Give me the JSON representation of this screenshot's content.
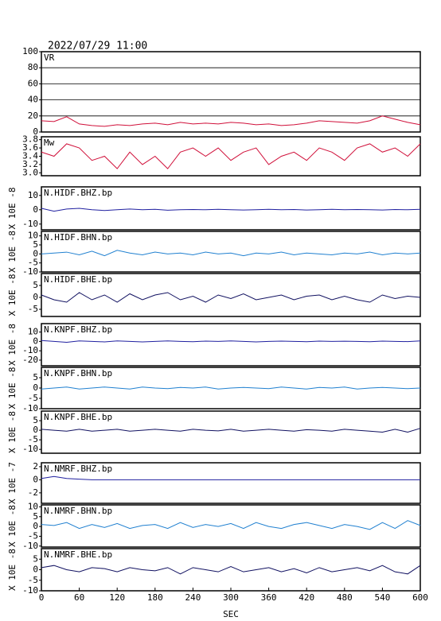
{
  "header": {
    "title": "2022/07/29 11:00"
  },
  "chart_data": [
    {
      "type": "line",
      "grid": true,
      "xlim": [
        0,
        600
      ],
      "ylim": [
        0,
        100
      ],
      "yticks": [
        0,
        20,
        40,
        60,
        80,
        100
      ],
      "x": [
        0,
        20,
        40,
        60,
        80,
        100,
        120,
        140,
        160,
        180,
        200,
        220,
        240,
        260,
        280,
        300,
        320,
        340,
        360,
        380,
        400,
        420,
        440,
        460,
        480,
        500,
        520,
        540,
        560,
        580,
        600
      ],
      "series": [
        {
          "name": "VR",
          "color": "#d0103a",
          "values": [
            14,
            13,
            19,
            10,
            8,
            7,
            9,
            8,
            10,
            11,
            9,
            12,
            10,
            11,
            10,
            12,
            11,
            9,
            10,
            8,
            9,
            11,
            14,
            13,
            12,
            11,
            14,
            20,
            16,
            12,
            9
          ]
        }
      ]
    },
    {
      "type": "line",
      "grid": false,
      "xlim": [
        0,
        600
      ],
      "ylim": [
        2.93,
        3.87
      ],
      "yticks": [
        {
          "value": 3,
          "label": "3.0"
        },
        3.2,
        3.4,
        3.6,
        3.8
      ],
      "x": [
        0,
        20,
        40,
        60,
        80,
        100,
        120,
        140,
        160,
        180,
        200,
        220,
        240,
        260,
        280,
        300,
        320,
        340,
        360,
        380,
        400,
        420,
        440,
        460,
        480,
        500,
        520,
        540,
        560,
        580,
        600
      ],
      "series": [
        {
          "name": "Mw",
          "color": "#d0103a",
          "values": [
            3.5,
            3.4,
            3.7,
            3.6,
            3.3,
            3.4,
            3.1,
            3.5,
            3.2,
            3.4,
            3.1,
            3.5,
            3.6,
            3.4,
            3.6,
            3.3,
            3.5,
            3.6,
            3.2,
            3.4,
            3.5,
            3.3,
            3.6,
            3.5,
            3.3,
            3.6,
            3.7,
            3.5,
            3.6,
            3.4,
            3.7
          ]
        }
      ]
    },
    {
      "type": "line",
      "grid": false,
      "ylabel": "X 10E -8",
      "xlim": [
        0,
        600
      ],
      "ylim": [
        -14,
        16
      ],
      "yticks": [
        -10,
        0,
        10
      ],
      "x": [
        0,
        20,
        40,
        60,
        80,
        100,
        120,
        140,
        160,
        180,
        200,
        220,
        240,
        260,
        280,
        300,
        320,
        340,
        360,
        380,
        400,
        420,
        440,
        460,
        480,
        500,
        520,
        540,
        560,
        580,
        600
      ],
      "series": [
        {
          "name": "N.HIDF.BHZ.bp",
          "color": "#2020a0",
          "values": [
            1,
            -1,
            0.5,
            1,
            0,
            -0.5,
            0,
            0.5,
            0,
            0.3,
            -0.3,
            0,
            0.2,
            0,
            0.3,
            0,
            -0.2,
            0,
            0.3,
            0,
            0.2,
            -0.2,
            0,
            0.3,
            0,
            0.2,
            0,
            -0.2,
            0.2,
            0,
            0.3
          ]
        }
      ]
    },
    {
      "type": "line",
      "grid": false,
      "ylabel": "X 10E -8",
      "xlim": [
        0,
        600
      ],
      "ylim": [
        -10,
        12.5
      ],
      "yticks": [
        -10,
        -5,
        0,
        5,
        10
      ],
      "x": [
        0,
        20,
        40,
        60,
        80,
        100,
        120,
        140,
        160,
        180,
        200,
        220,
        240,
        260,
        280,
        300,
        320,
        340,
        360,
        380,
        400,
        420,
        440,
        460,
        480,
        500,
        520,
        540,
        560,
        580,
        600
      ],
      "series": [
        {
          "name": "N.HIDF.BHN.bp",
          "color": "#2080d0",
          "values": [
            0,
            0.5,
            1,
            -0.5,
            1.5,
            -1,
            2,
            0.5,
            -0.5,
            1,
            0,
            0.5,
            -0.5,
            1,
            0,
            0.5,
            -1,
            0.5,
            0,
            1,
            -0.5,
            0.5,
            0,
            -0.5,
            0.5,
            0,
            1,
            -0.5,
            0.5,
            0,
            0.5
          ]
        }
      ]
    },
    {
      "type": "line",
      "grid": false,
      "ylabel": "X 10E -8",
      "xlim": [
        0,
        600
      ],
      "ylim": [
        -8,
        10
      ],
      "yticks": [
        -5,
        0,
        5
      ],
      "x": [
        0,
        20,
        40,
        60,
        80,
        100,
        120,
        140,
        160,
        180,
        200,
        220,
        240,
        260,
        280,
        300,
        320,
        340,
        360,
        380,
        400,
        420,
        440,
        460,
        480,
        500,
        520,
        540,
        560,
        580,
        600
      ],
      "series": [
        {
          "name": "N.HIDF.BHE.bp",
          "color": "#101060",
          "values": [
            1,
            -1,
            -2,
            2,
            -1,
            1,
            -2,
            1.5,
            -1,
            1,
            2,
            -1,
            0.5,
            -2,
            1,
            -0.5,
            1.5,
            -1,
            0,
            1,
            -1,
            0.5,
            1,
            -1,
            0.5,
            -1,
            -2,
            1,
            -0.5,
            0.5,
            0
          ]
        }
      ]
    },
    {
      "type": "line",
      "grid": false,
      "ylabel": "X 10E -8",
      "xlim": [
        0,
        600
      ],
      "ylim": [
        -26,
        19
      ],
      "yticks": [
        -20,
        -10,
        0,
        10
      ],
      "x": [
        0,
        20,
        40,
        60,
        80,
        100,
        120,
        140,
        160,
        180,
        200,
        220,
        240,
        260,
        280,
        300,
        320,
        340,
        360,
        380,
        400,
        420,
        440,
        460,
        480,
        500,
        520,
        540,
        560,
        580,
        600
      ],
      "series": [
        {
          "name": "N.KNPF.BHZ.bp",
          "color": "#2020a0",
          "values": [
            1,
            0,
            -1,
            0.5,
            0,
            -0.5,
            0.5,
            0,
            -0.5,
            0,
            0.5,
            0,
            -0.3,
            0.3,
            0,
            0.5,
            0,
            -0.5,
            0,
            0.3,
            0,
            -0.3,
            0.3,
            0,
            0.2,
            0,
            -0.3,
            0.3,
            0,
            -0.2,
            0.5
          ]
        }
      ]
    },
    {
      "type": "line",
      "grid": false,
      "ylabel": "X 10E -8",
      "xlim": [
        0,
        600
      ],
      "ylim": [
        -10,
        10
      ],
      "yticks": [
        -10,
        -5,
        0,
        5
      ],
      "x": [
        0,
        20,
        40,
        60,
        80,
        100,
        120,
        140,
        160,
        180,
        200,
        220,
        240,
        260,
        280,
        300,
        320,
        340,
        360,
        380,
        400,
        420,
        440,
        460,
        480,
        500,
        520,
        540,
        560,
        580,
        600
      ],
      "series": [
        {
          "name": "N.KNPF.BHN.bp",
          "color": "#2080d0",
          "values": [
            -0.5,
            0,
            0.5,
            -0.5,
            0,
            0.5,
            0,
            -0.5,
            0.5,
            0,
            -0.3,
            0.3,
            0,
            0.5,
            -0.5,
            0,
            0.3,
            0,
            -0.3,
            0.5,
            0,
            -0.5,
            0.3,
            0,
            0.5,
            -0.5,
            0,
            0.3,
            0,
            -0.3,
            0
          ]
        }
      ]
    },
    {
      "type": "line",
      "grid": false,
      "ylabel": "X 10E -8",
      "xlim": [
        0,
        600
      ],
      "ylim": [
        -12,
        10
      ],
      "yticks": [
        -10,
        -5,
        0,
        5
      ],
      "x": [
        0,
        20,
        40,
        60,
        80,
        100,
        120,
        140,
        160,
        180,
        200,
        220,
        240,
        260,
        280,
        300,
        320,
        340,
        360,
        380,
        400,
        420,
        440,
        460,
        480,
        500,
        520,
        540,
        560,
        580,
        600
      ],
      "series": [
        {
          "name": "N.KNPF.BHE.bp",
          "color": "#101060",
          "values": [
            0.5,
            0,
            -0.5,
            0.5,
            -0.5,
            0,
            0.5,
            -0.5,
            0,
            0.5,
            0,
            -0.5,
            0.5,
            0,
            -0.3,
            0.5,
            -0.5,
            0,
            0.5,
            0,
            -0.5,
            0.3,
            0,
            -0.5,
            0.5,
            0,
            -0.5,
            -1,
            0.5,
            -1,
            1
          ]
        }
      ]
    },
    {
      "type": "line",
      "grid": false,
      "ylabel": "X 10E -7",
      "xlim": [
        0,
        600
      ],
      "ylim": [
        -3.6,
        2.6
      ],
      "yticks": [
        -2,
        0,
        2
      ],
      "x": [
        0,
        20,
        40,
        60,
        80,
        100,
        120,
        140,
        160,
        180,
        200,
        220,
        240,
        260,
        280,
        300,
        320,
        340,
        360,
        380,
        400,
        420,
        440,
        460,
        480,
        500,
        520,
        540,
        560,
        580,
        600
      ],
      "series": [
        {
          "name": "N.NMRF.BHZ.bp",
          "color": "#2020a0",
          "values": [
            0.2,
            0.5,
            0.2,
            0.1,
            0,
            0,
            0,
            0,
            0,
            0,
            0,
            0,
            0,
            0,
            0,
            0,
            0,
            0,
            0,
            0,
            0,
            0,
            0,
            0,
            0,
            0,
            0,
            0,
            0,
            0,
            0
          ]
        }
      ]
    },
    {
      "type": "line",
      "grid": false,
      "ylabel": "X 10E -8",
      "xlim": [
        0,
        600
      ],
      "ylim": [
        -10.5,
        11
      ],
      "yticks": [
        -10,
        -5,
        0,
        5,
        10
      ],
      "x": [
        0,
        20,
        40,
        60,
        80,
        100,
        120,
        140,
        160,
        180,
        200,
        220,
        240,
        260,
        280,
        300,
        320,
        340,
        360,
        380,
        400,
        420,
        440,
        460,
        480,
        500,
        520,
        540,
        560,
        580,
        600
      ],
      "series": [
        {
          "name": "N.NMRF.BHN.bp",
          "color": "#2080d0",
          "values": [
            1,
            0.5,
            2,
            -1,
            1,
            -0.5,
            1.5,
            -1,
            0.5,
            1,
            -1,
            2,
            -0.5,
            1,
            0,
            1.5,
            -1,
            2,
            0,
            -1,
            1,
            2,
            0.5,
            -1,
            1,
            0,
            -1.5,
            2,
            -1,
            3,
            0.5
          ]
        }
      ]
    },
    {
      "type": "line",
      "grid": false,
      "ylabel": "X 10E -8",
      "xlabel": "SEC",
      "xlim": [
        0,
        600
      ],
      "ylim": [
        -10,
        10
      ],
      "yticks": [
        -10,
        -5,
        0,
        5
      ],
      "xticks": [
        0,
        60,
        120,
        180,
        240,
        300,
        360,
        420,
        480,
        540,
        600
      ],
      "x": [
        0,
        20,
        40,
        60,
        80,
        100,
        120,
        140,
        160,
        180,
        200,
        220,
        240,
        260,
        280,
        300,
        320,
        340,
        360,
        380,
        400,
        420,
        440,
        460,
        480,
        500,
        520,
        540,
        560,
        580,
        600
      ],
      "series": [
        {
          "name": "N.NMRF.BHE.bp",
          "color": "#101060",
          "values": [
            1,
            2,
            0,
            -1,
            1,
            0.5,
            -1,
            1,
            0,
            -0.5,
            1,
            -2,
            1,
            0,
            -1,
            1.5,
            -1,
            0,
            1,
            -1,
            0.5,
            -1.5,
            1,
            -1,
            0,
            1,
            -0.5,
            2,
            -1,
            -2,
            2
          ]
        }
      ]
    }
  ]
}
